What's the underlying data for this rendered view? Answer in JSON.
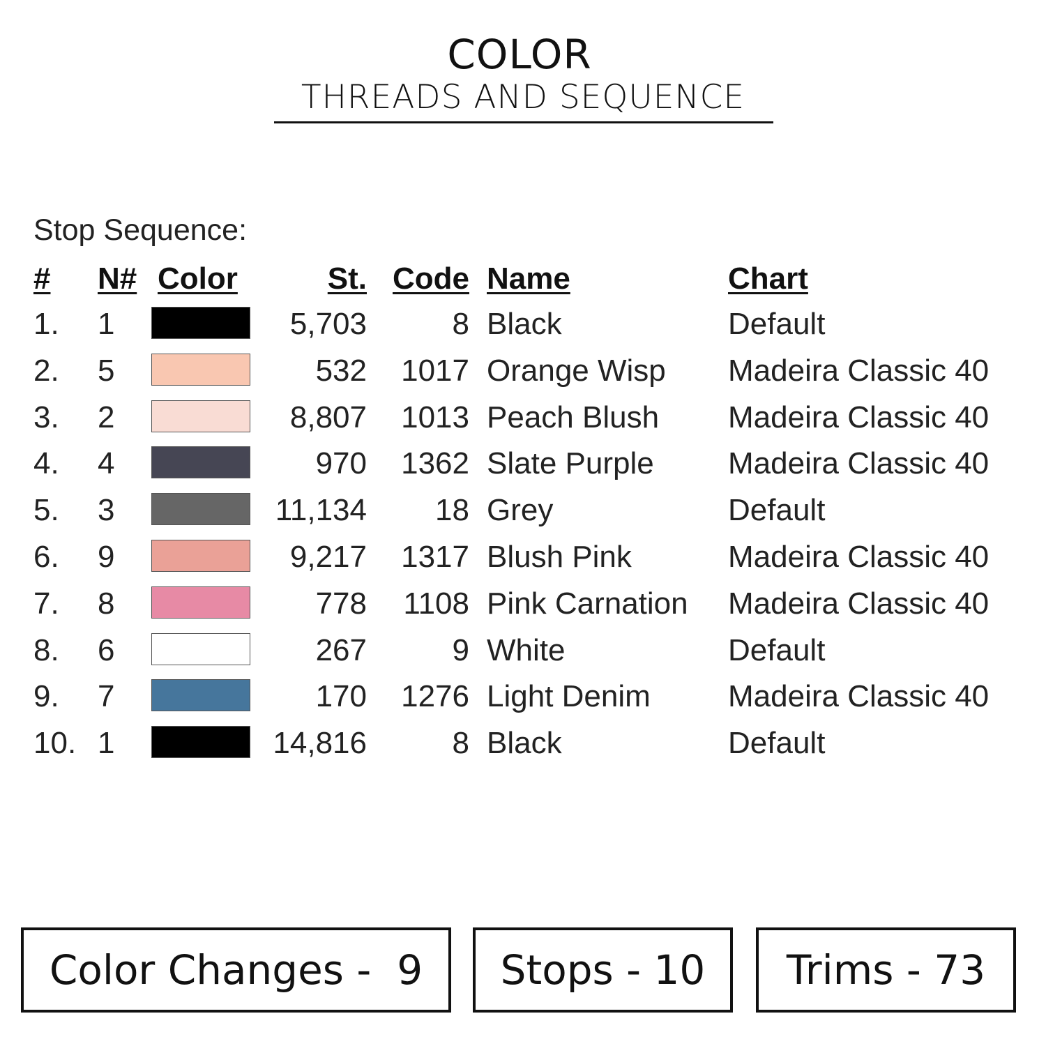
{
  "title": "COLOR",
  "subtitle": "THREADS AND SEQUENCE",
  "sequence_label": "Stop Sequence:",
  "headers": {
    "num": "#",
    "needle": "N#",
    "color": "Color",
    "stitches": "St.",
    "code": "Code",
    "name": "Name",
    "chart": "Chart"
  },
  "rows": [
    {
      "num": "1.",
      "needle": "1",
      "color": "#000000",
      "stitches": "5,703",
      "code": "8",
      "name": "Black",
      "chart": "Default"
    },
    {
      "num": "2.",
      "needle": "5",
      "color": "#f9c7b1",
      "stitches": "532",
      "code": "1017",
      "name": "Orange Wisp",
      "chart": "Madeira Classic 40"
    },
    {
      "num": "3.",
      "needle": "2",
      "color": "#f9dcd4",
      "stitches": "8,807",
      "code": "1013",
      "name": "Peach Blush",
      "chart": "Madeira Classic 40"
    },
    {
      "num": "4.",
      "needle": "4",
      "color": "#464654",
      "stitches": "970",
      "code": "1362",
      "name": "Slate Purple",
      "chart": "Madeira Classic 40"
    },
    {
      "num": "5.",
      "needle": "3",
      "color": "#666666",
      "stitches": "11,134",
      "code": "18",
      "name": "Grey",
      "chart": "Default"
    },
    {
      "num": "6.",
      "needle": "9",
      "color": "#eaa197",
      "stitches": "9,217",
      "code": "1317",
      "name": "Blush Pink",
      "chart": "Madeira Classic 40"
    },
    {
      "num": "7.",
      "needle": "8",
      "color": "#e78aa5",
      "stitches": "778",
      "code": "1108",
      "name": "Pink Carnation",
      "chart": "Madeira Classic 40"
    },
    {
      "num": "8.",
      "needle": "6",
      "color": "#ffffff",
      "stitches": "267",
      "code": "9",
      "name": "White",
      "chart": "Default"
    },
    {
      "num": "9.",
      "needle": "7",
      "color": "#46769c",
      "stitches": "170",
      "code": "1276",
      "name": "Light Denim",
      "chart": "Madeira Classic 40"
    },
    {
      "num": "10.",
      "needle": "1",
      "color": "#000000",
      "stitches": "14,816",
      "code": "8",
      "name": "Black",
      "chart": "Default"
    }
  ],
  "summary": {
    "color_changes": "Color Changes -  9",
    "stops": "Stops - 10",
    "trims": "Trims - 73"
  }
}
